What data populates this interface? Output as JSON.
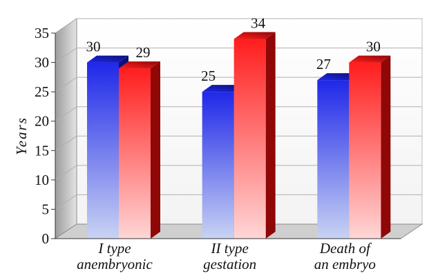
{
  "chart_data": {
    "type": "bar",
    "style": "3d-clustered",
    "title": "",
    "xlabel": "",
    "ylabel": "Years",
    "ylim": [
      0,
      35
    ],
    "yticks": [
      0,
      5,
      10,
      15,
      20,
      25,
      30,
      35
    ],
    "grid": true,
    "legend": "none",
    "categories": [
      {
        "line1": "I type",
        "line2": "anembryonic"
      },
      {
        "line1": "II type",
        "line2": "gestation"
      },
      {
        "line1": "Death of",
        "line2": "an embryo"
      }
    ],
    "series": [
      {
        "values": [
          30,
          25,
          27
        ],
        "color_top": "#1f28e8",
        "color_bottom": "#c9d3f3",
        "color_side": "#0b0f7a"
      },
      {
        "values": [
          29,
          34,
          30
        ],
        "color_top": "#ff1e1e",
        "color_bottom": "#ffd6d6",
        "color_side": "#8f0707"
      }
    ],
    "data_labels": [
      [
        "30",
        "25",
        "27"
      ],
      [
        "29",
        "34",
        "30"
      ]
    ]
  }
}
